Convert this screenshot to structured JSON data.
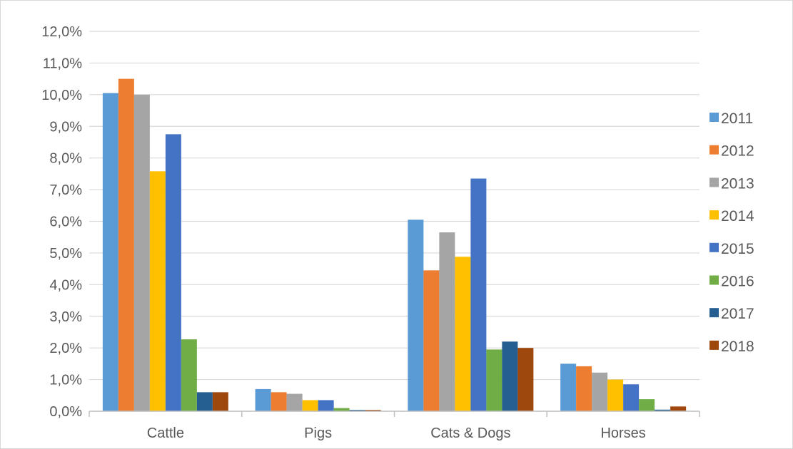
{
  "chart_data": {
    "type": "bar",
    "title": "",
    "xlabel": "",
    "ylabel": "",
    "categories": [
      "Cattle",
      "Pigs",
      "Cats & Dogs",
      "Horses"
    ],
    "ylim": [
      0,
      12
    ],
    "yticks": [
      "0,0%",
      "1,0%",
      "2,0%",
      "3,0%",
      "4,0%",
      "5,0%",
      "6,0%",
      "7,0%",
      "8,0%",
      "9,0%",
      "10,0%",
      "11,0%",
      "12,0%"
    ],
    "grid": true,
    "legend": "right",
    "series": [
      {
        "name": "2011",
        "color": "#5b9bd5",
        "values": [
          10.05,
          0.7,
          6.05,
          1.5
        ]
      },
      {
        "name": "2012",
        "color": "#ed7d31",
        "values": [
          10.5,
          0.6,
          4.45,
          1.42
        ]
      },
      {
        "name": "2013",
        "color": "#a5a5a5",
        "values": [
          10.0,
          0.55,
          5.65,
          1.22
        ]
      },
      {
        "name": "2014",
        "color": "#ffc000",
        "values": [
          7.58,
          0.35,
          4.88,
          1.0
        ]
      },
      {
        "name": "2015",
        "color": "#4472c4",
        "values": [
          8.75,
          0.35,
          7.35,
          0.85
        ]
      },
      {
        "name": "2016",
        "color": "#70ad47",
        "values": [
          2.27,
          0.1,
          1.95,
          0.38
        ]
      },
      {
        "name": "2017",
        "color": "#255e91",
        "values": [
          0.6,
          0.04,
          2.2,
          0.05
        ]
      },
      {
        "name": "2018",
        "color": "#9e480e",
        "values": [
          0.6,
          0.04,
          2.0,
          0.15
        ]
      }
    ]
  }
}
